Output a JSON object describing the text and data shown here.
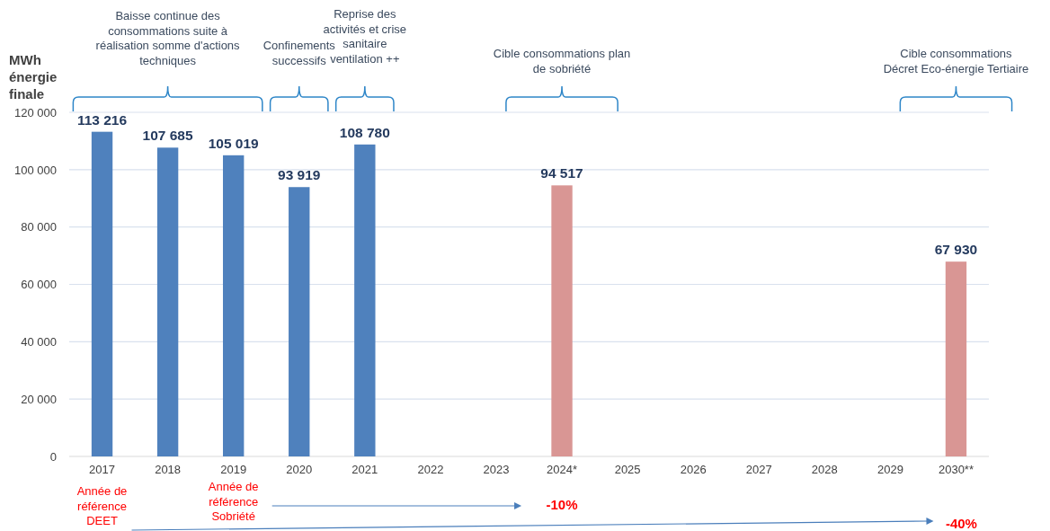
{
  "chart_data": {
    "type": "bar",
    "ylabel": "MWh énergie finale",
    "categories": [
      "2017",
      "2018",
      "2019",
      "2020",
      "2021",
      "2022",
      "2023",
      "2024*",
      "2025",
      "2026",
      "2027",
      "2028",
      "2029",
      "2030**"
    ],
    "values": [
      113216,
      107685,
      105019,
      93919,
      108780,
      null,
      null,
      94517,
      null,
      null,
      null,
      null,
      null,
      67930
    ],
    "colors": [
      "#4f81bd",
      "#4f81bd",
      "#4f81bd",
      "#4f81bd",
      "#4f81bd",
      null,
      null,
      "#d99694",
      null,
      null,
      null,
      null,
      null,
      "#d99694"
    ],
    "value_labels": [
      "113 216",
      "107 685",
      "105 019",
      "93 919",
      "108 780",
      null,
      null,
      "94 517",
      null,
      null,
      null,
      null,
      null,
      "67 930"
    ],
    "ylim": [
      0,
      120000
    ],
    "yticks": [
      0,
      {
        "value": 20000,
        "label": "20 000"
      },
      {
        "value": 40000,
        "label": "40 000"
      },
      {
        "value": 60000,
        "label": "60 000"
      },
      {
        "value": 80000,
        "label": "80 000"
      },
      {
        "value": 100000,
        "label": "100 000"
      },
      {
        "value": 120000,
        "label": "120 000"
      }
    ],
    "grid": "y",
    "annotations": [
      "Baisse continue des consommations suite à réalisation somme d'actions techniques",
      "Confinements successifs",
      "Reprise des activités et crise sanitaire ventilation ++",
      "Cible consommations plan de sobriété",
      "Cible consommations Décret Eco-énergie Tertiaire",
      "Année de référence DEET",
      "Année de référence Sobriété",
      "-10%",
      "-40%"
    ]
  }
}
